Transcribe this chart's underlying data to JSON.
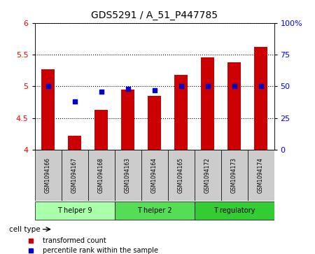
{
  "title": "GDS5291 / A_51_P447785",
  "samples": [
    "GSM1094166",
    "GSM1094167",
    "GSM1094168",
    "GSM1094163",
    "GSM1094164",
    "GSM1094165",
    "GSM1094172",
    "GSM1094173",
    "GSM1094174"
  ],
  "transformed_counts": [
    5.27,
    4.22,
    4.63,
    4.95,
    4.85,
    5.18,
    5.46,
    5.38,
    5.62
  ],
  "percentile_ranks": [
    50,
    38,
    46,
    48,
    47,
    50,
    50,
    50,
    50
  ],
  "ylim_left": [
    4.0,
    6.0
  ],
  "ylim_right": [
    0,
    100
  ],
  "yticks_left": [
    4.0,
    4.5,
    5.0,
    5.5,
    6.0
  ],
  "yticks_right": [
    0,
    25,
    50,
    75,
    100
  ],
  "ytick_labels_right": [
    "0",
    "25",
    "50",
    "75",
    "100%"
  ],
  "bar_color": "#cc0000",
  "dot_color": "#0000cc",
  "cell_types": [
    {
      "label": "T helper 9",
      "indices": [
        0,
        1,
        2
      ],
      "color": "#aaffaa"
    },
    {
      "label": "T helper 2",
      "indices": [
        3,
        4,
        5
      ],
      "color": "#55dd55"
    },
    {
      "label": "T regulatory",
      "indices": [
        6,
        7,
        8
      ],
      "color": "#33cc33"
    }
  ],
  "legend_bar_label": "transformed count",
  "legend_dot_label": "percentile rank within the sample",
  "cell_type_label": "cell type",
  "bg_color": "#ffffff",
  "sample_bg_color": "#cccccc"
}
